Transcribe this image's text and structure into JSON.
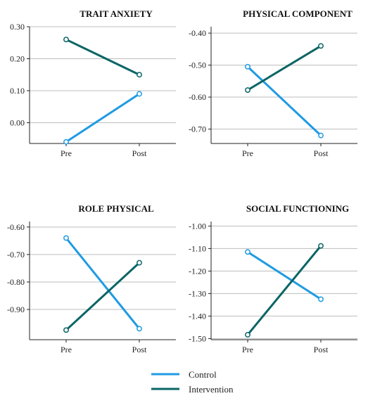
{
  "chart_data": [
    {
      "type": "line",
      "title": "TRAIT ANXIETY",
      "categories": [
        "Pre",
        "Post"
      ],
      "yticks": [
        "0.30",
        "0.20",
        "0.10",
        "0.00"
      ],
      "ylim": [
        -0.065,
        0.3
      ],
      "grid": true,
      "series": [
        {
          "name": "Control",
          "values": [
            -0.06,
            0.09
          ]
        },
        {
          "name": "Intervention",
          "values": [
            0.26,
            0.15
          ]
        }
      ]
    },
    {
      "type": "line",
      "title": "PHYSICAL COMPONENT",
      "categories": [
        "Pre",
        "Post"
      ],
      "yticks": [
        "-0.40",
        "-0.50",
        "-0.60",
        "-0.70"
      ],
      "ylim": [
        -0.745,
        -0.38
      ],
      "grid": true,
      "series": [
        {
          "name": "Control",
          "values": [
            -0.505,
            -0.72
          ]
        },
        {
          "name": "Intervention",
          "values": [
            -0.578,
            -0.44
          ]
        }
      ]
    },
    {
      "type": "line",
      "title": "ROLE PHYSICAL",
      "categories": [
        "Pre",
        "Post"
      ],
      "yticks": [
        "-0.60",
        "-0.70",
        "-0.80",
        "-0.90"
      ],
      "ylim": [
        -1.01,
        -0.58
      ],
      "grid": true,
      "series": [
        {
          "name": "Control",
          "values": [
            -0.64,
            -0.97
          ]
        },
        {
          "name": "Intervention",
          "values": [
            -0.975,
            -0.73
          ]
        }
      ]
    },
    {
      "type": "line",
      "title": "SOCIAL FUNCTIONING",
      "categories": [
        "Pre",
        "Post"
      ],
      "yticks": [
        "-1.00",
        "-1.10",
        "-1.20",
        "-1.30",
        "-1.40",
        "-1.50"
      ],
      "ylim": [
        -1.505,
        -0.98
      ],
      "grid": true,
      "series": [
        {
          "name": "Control",
          "values": [
            -1.115,
            -1.325
          ]
        },
        {
          "name": "Intervention",
          "values": [
            -1.483,
            -1.088
          ]
        }
      ]
    }
  ],
  "legend": {
    "placement": "bottom-center",
    "items": [
      {
        "label": "Control",
        "color": "#1f9be3"
      },
      {
        "label": "Intervention",
        "color": "#0b6566"
      }
    ]
  },
  "colors": {
    "control": "#1f9be3",
    "intervention": "#0b6566",
    "grid": "#bdbdbd",
    "axis": "#222222"
  }
}
